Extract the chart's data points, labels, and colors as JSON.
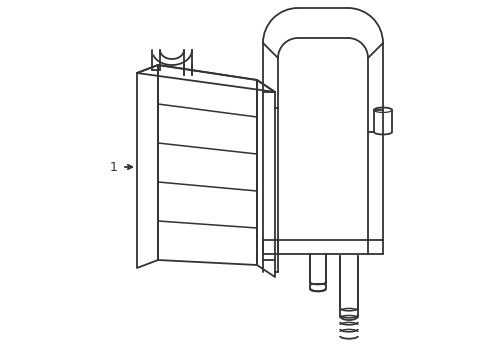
{
  "background_color": "#ffffff",
  "line_color": "#333333",
  "line_width": 1.3,
  "fig_width": 4.89,
  "fig_height": 3.6,
  "dpi": 100,
  "label": "1"
}
